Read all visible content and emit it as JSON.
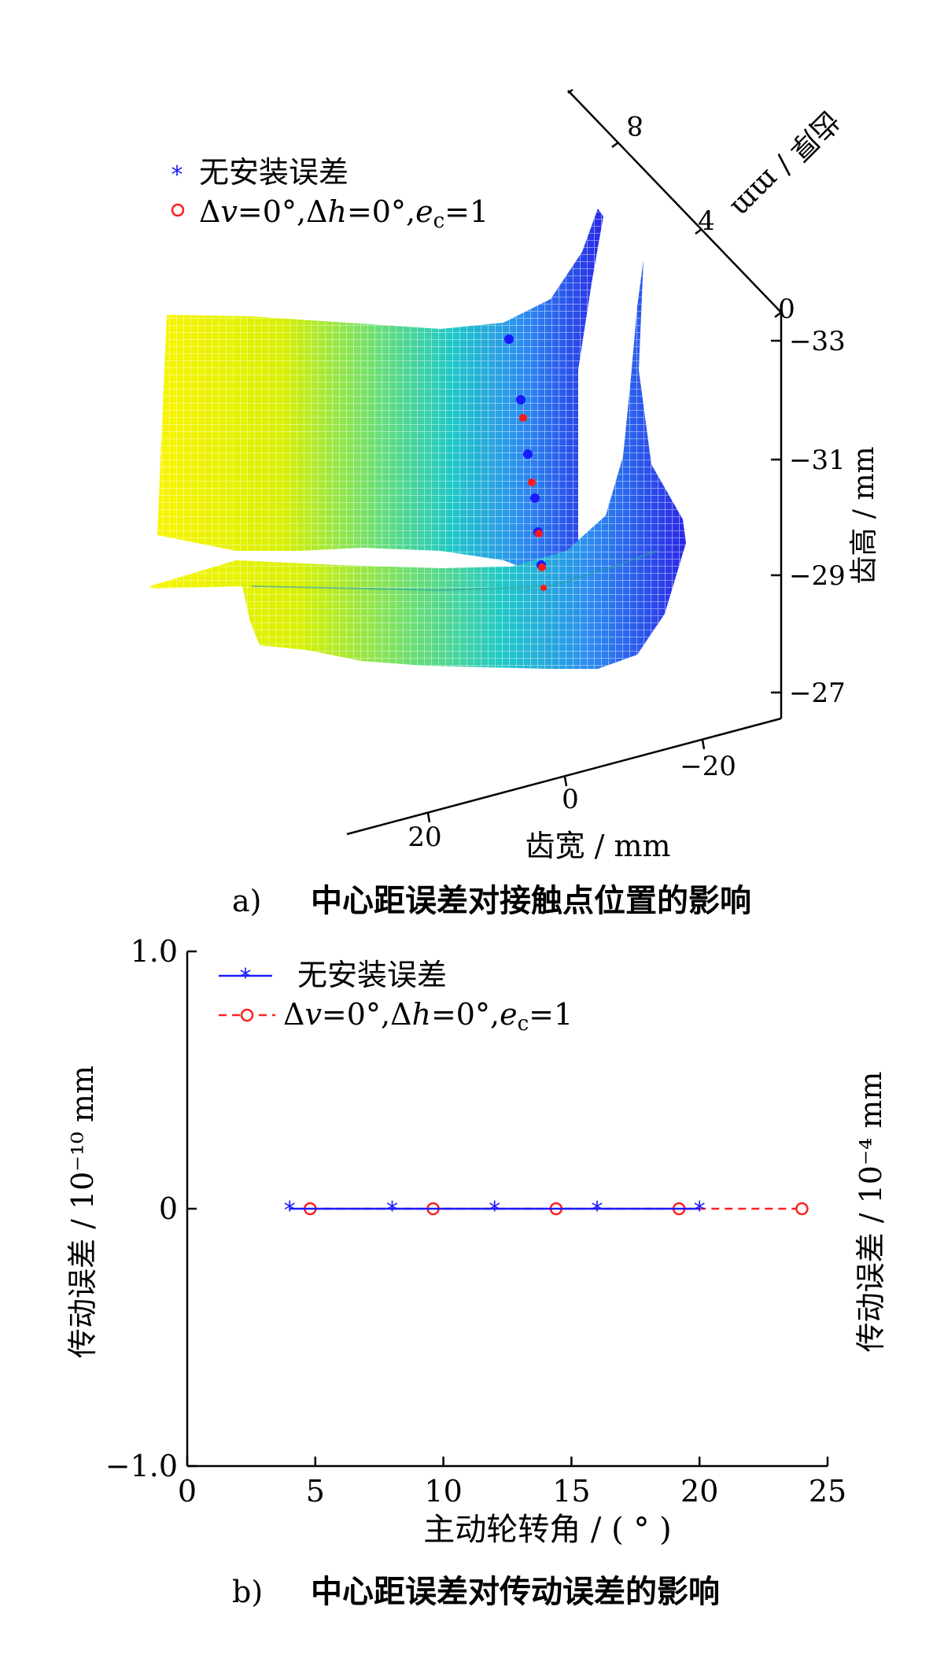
{
  "figure_a": {
    "caption_label": "a)",
    "caption_text": "中心距误差对接触点位置的影响",
    "axis_thickness": {
      "label": "齿厚 / mm",
      "ticks": [
        "8",
        "4",
        "0"
      ]
    },
    "axis_height": {
      "label": "齿高 / mm",
      "ticks": [
        "−33",
        "−31",
        "−29",
        "−27"
      ]
    },
    "axis_width": {
      "label": "齿宽 / mm",
      "ticks": [
        "−20",
        "0",
        "20"
      ]
    },
    "legend": [
      {
        "marker": "*",
        "label": "无安装误差",
        "color": "#1a1aff"
      },
      {
        "marker": "o",
        "label": "Δv=0°,Δh=0°,ec=1",
        "color": "#ff2020"
      }
    ],
    "colors": {
      "surface_high": "#ffff00",
      "surface_mid": "#20c0c0",
      "surface_low": "#2020ff"
    }
  },
  "figure_b": {
    "caption_label": "b)",
    "caption_text": "中心距误差对传动误差的影响",
    "ylabel_left": "传动误差 / 10⁻¹⁰ mm",
    "ylabel_right": "传动误差 / 10⁻⁴ mm",
    "xlabel": "主动轮转角 / ( ° )"
  },
  "chart_data": [
    {
      "type": "line",
      "title": "",
      "xlabel": "主动轮转角 / ( ° )",
      "ylabel": "传动误差 / 10⁻¹⁰ mm",
      "ylabel_right": "传动误差 / 10⁻⁴ mm",
      "xlim": [
        0,
        25
      ],
      "ylim": [
        -1.0,
        1.0
      ],
      "x_ticks": [
        "0",
        "5",
        "10",
        "15",
        "20",
        "25"
      ],
      "y_ticks": [
        "−1.0",
        "0",
        "1.0"
      ],
      "legend_position": "top-left",
      "series": [
        {
          "name": "无安装误差",
          "marker": "*",
          "line": "solid",
          "color": "#1a1aff",
          "x": [
            4,
            8,
            12,
            16,
            20
          ],
          "y": [
            0,
            0,
            0,
            0,
            0
          ]
        },
        {
          "name": "Δv=0°,Δh=0°,ec=1",
          "marker": "o",
          "line": "dashed",
          "color": "#ff2020",
          "x": [
            4.8,
            9.6,
            14.4,
            19.2,
            24.0
          ],
          "y": [
            0,
            0,
            0,
            0,
            0
          ]
        }
      ]
    }
  ]
}
